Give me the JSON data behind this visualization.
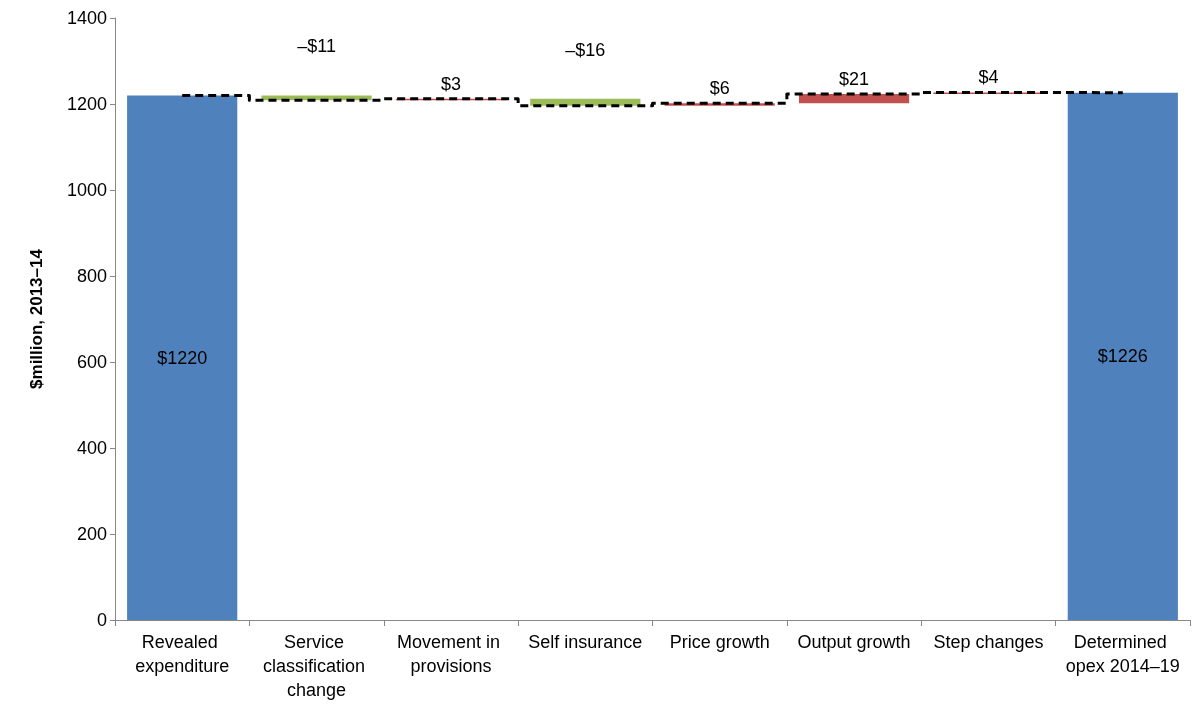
{
  "chart_data": {
    "type": "bar",
    "ylabel": "$million, 2013–14",
    "categories": [
      "Revealed expenditure",
      "Service classification change",
      "Movement in provisions",
      "Self insurance",
      "Price growth",
      "Output growth",
      "Step changes",
      "Determined opex 2014–19"
    ],
    "series": [
      {
        "values": [
          1220,
          -11,
          3,
          -16,
          6,
          21,
          4,
          1226
        ],
        "base": [
          0,
          1220,
          1209,
          1212,
          1196,
          1202,
          1223,
          0
        ],
        "colors": [
          "#4f81bd",
          "#9bbb59",
          "#c0504d",
          "#9bbb59",
          "#c0504d",
          "#c0504d",
          "#c0504d",
          "#4f81bd"
        ],
        "value_labels": [
          "$1220",
          "–$11",
          "$3",
          "–$16",
          "$6",
          "$21",
          "$4",
          "$1226"
        ]
      },
      {
        "type": "step",
        "color": "#000000",
        "line_style": "dashed",
        "values": [
          1220,
          1209,
          1212,
          1196,
          1202,
          1223,
          1227,
          1226
        ]
      }
    ],
    "ylim": [
      0,
      1400
    ],
    "yticks": [
      0,
      200,
      400,
      600,
      800,
      1000,
      1200,
      1400
    ],
    "grid": false
  }
}
